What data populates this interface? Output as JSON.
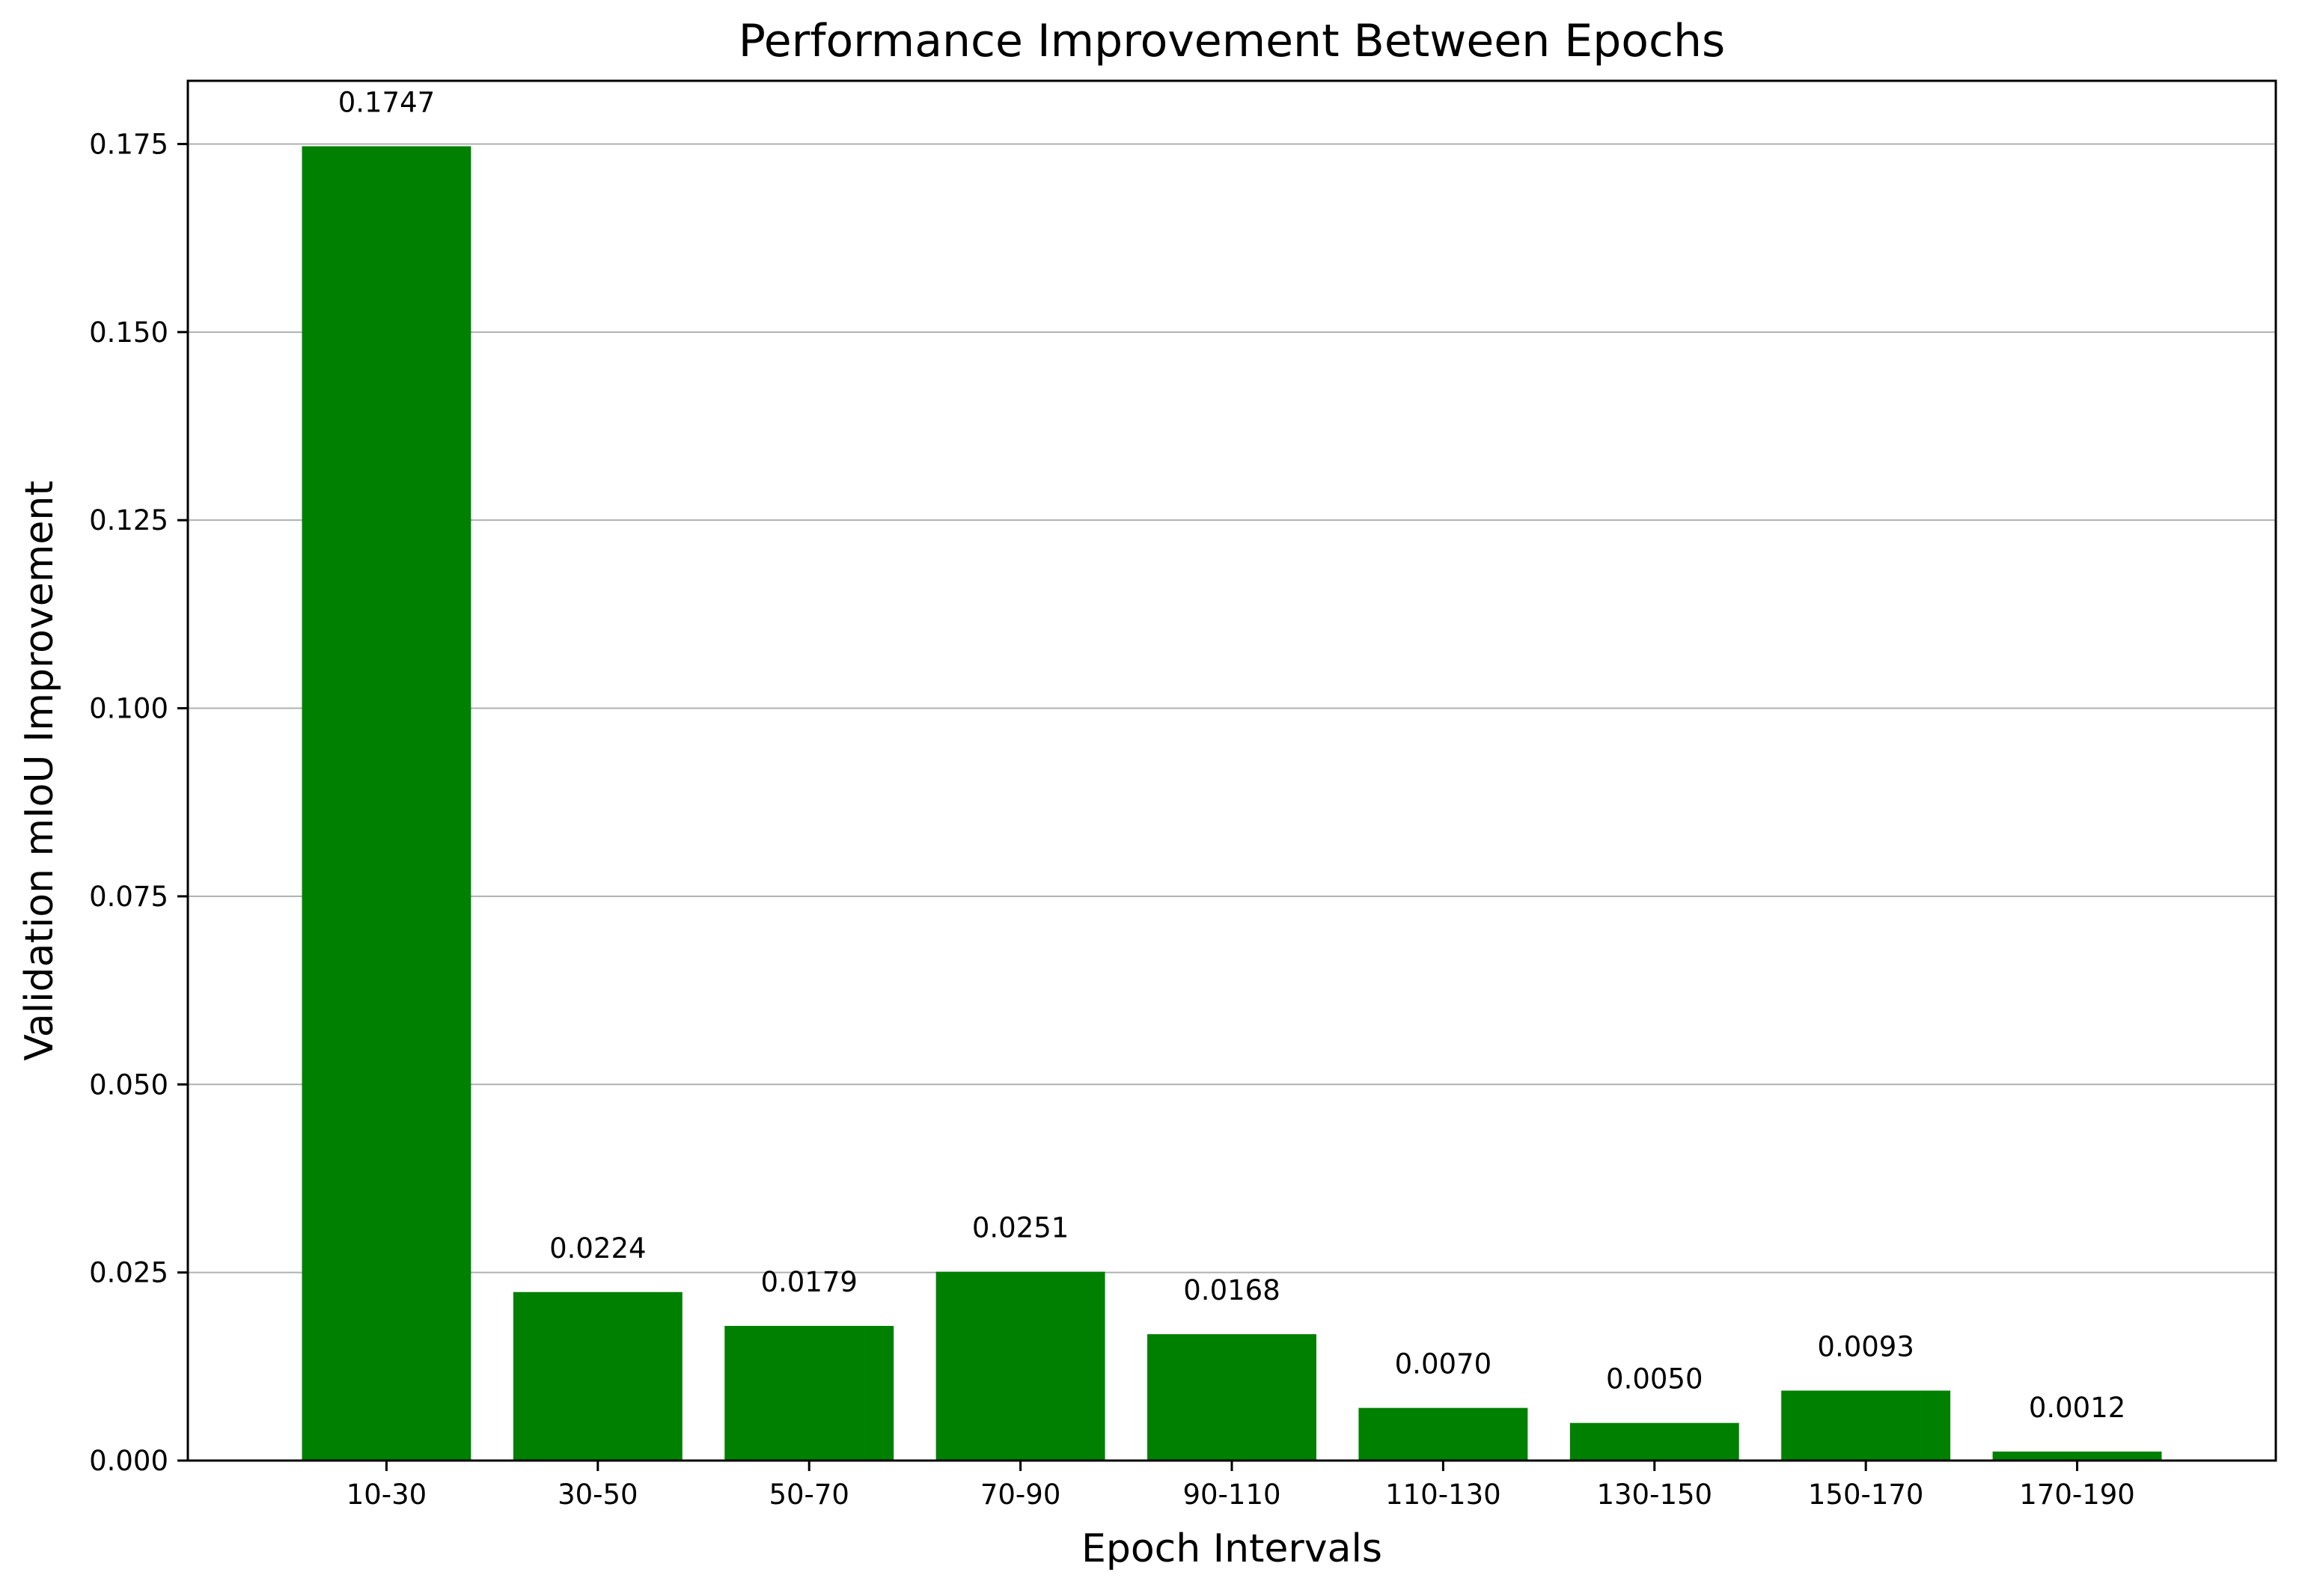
{
  "chart_data": {
    "type": "bar",
    "title": "Performance Improvement Between Epochs",
    "xlabel": "Epoch Intervals",
    "ylabel": "Validation mIoU Improvement",
    "categories": [
      "10-30",
      "30-50",
      "50-70",
      "70-90",
      "90-110",
      "110-130",
      "130-150",
      "150-170",
      "170-190"
    ],
    "values": [
      0.1747,
      0.0224,
      0.0179,
      0.0251,
      0.0168,
      0.007,
      0.005,
      0.0093,
      0.0012
    ],
    "value_labels": [
      "0.1747",
      "0.0224",
      "0.0179",
      "0.0251",
      "0.0168",
      "0.0070",
      "0.0050",
      "0.0093",
      "0.0012"
    ],
    "ylim": [
      0,
      0.1834
    ],
    "yticks": [
      0.0,
      0.025,
      0.05,
      0.075,
      0.1,
      0.125,
      0.15,
      0.175
    ],
    "ytick_labels": [
      "0.000",
      "0.025",
      "0.050",
      "0.075",
      "0.100",
      "0.125",
      "0.150",
      "0.175"
    ],
    "grid": "y",
    "bar_color": "#008000",
    "grid_color": "#b0b0b0"
  }
}
